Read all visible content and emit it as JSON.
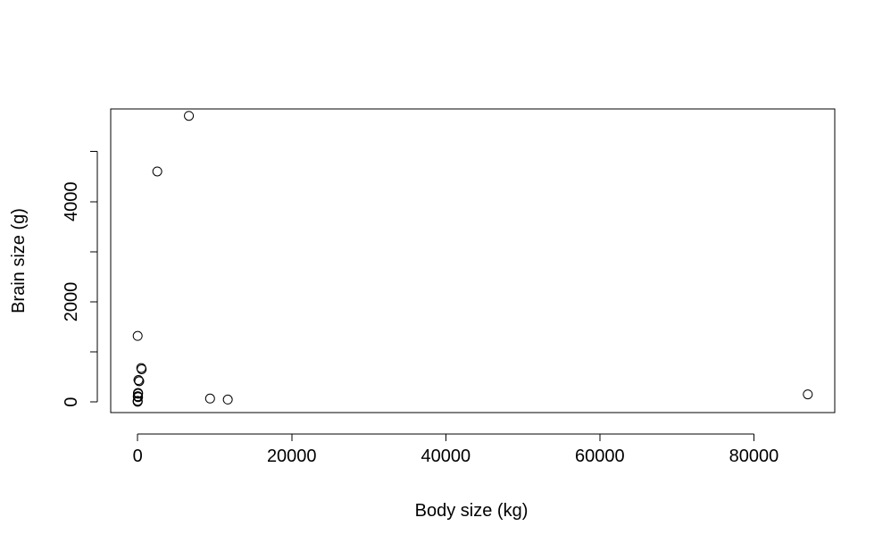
{
  "chart_data": {
    "type": "scatter",
    "title": "",
    "xlabel": "Body size (kg)",
    "ylabel": "Brain size (g)",
    "xlim": [
      -3500,
      90500
    ],
    "ylim": [
      -210,
      5850
    ],
    "x_ticks": [
      0,
      20000,
      40000,
      60000,
      80000
    ],
    "x_tick_labels": [
      "0",
      "20000",
      "40000",
      "60000",
      "80000"
    ],
    "y_ticks": [
      0,
      1000,
      2000,
      3000,
      4000,
      5000
    ],
    "y_tick_labels": [
      "0",
      "",
      "2000",
      "",
      "4000",
      ""
    ],
    "grid": false,
    "marker": "open-circle",
    "point_color": "#000000",
    "points": [
      {
        "x": 6650,
        "y": 5712
      },
      {
        "x": 2547,
        "y": 4603
      },
      {
        "x": 0,
        "y": 1320
      },
      {
        "x": 521,
        "y": 655
      },
      {
        "x": 465,
        "y": 680
      },
      {
        "x": 187,
        "y": 419
      },
      {
        "x": 100,
        "y": 440
      },
      {
        "x": 200,
        "y": 416
      },
      {
        "x": 35,
        "y": 179
      },
      {
        "x": 62,
        "y": 180
      },
      {
        "x": 52,
        "y": 167
      },
      {
        "x": 10,
        "y": 115
      },
      {
        "x": 27,
        "y": 115
      },
      {
        "x": 55,
        "y": 98
      },
      {
        "x": 3,
        "y": 25
      },
      {
        "x": 1,
        "y": 6
      },
      {
        "x": 5,
        "y": 12
      },
      {
        "x": 9400,
        "y": 70
      },
      {
        "x": 11700,
        "y": 50
      },
      {
        "x": 87000,
        "y": 154
      }
    ]
  }
}
